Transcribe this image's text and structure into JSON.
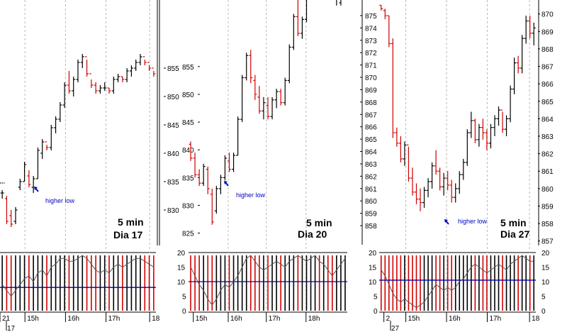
{
  "colors": {
    "up": "#000000",
    "down": "#d00000",
    "osc": "#555555",
    "level": "#0000a0",
    "annotation": "#0000c0"
  },
  "chart_data": [
    {
      "type": "ohlc",
      "label": "5 min",
      "day": "Dia 17",
      "annotation": "higher low",
      "price_ticks": [
        "830",
        "835",
        "840",
        "845",
        "850",
        "855"
      ],
      "price_range": [
        823,
        867
      ],
      "osc_ticks": [],
      "osc_range": [
        0,
        20
      ],
      "osc_level": 8,
      "time_labels": [
        "21",
        "15h",
        "16h",
        "17h",
        "18"
      ],
      "time_positions": [
        0,
        0.16,
        0.42,
        0.68,
        0.96
      ],
      "extra_label": "17",
      "bars": [
        [
          833,
          833.5,
          832,
          833
        ],
        [
          832,
          832.5,
          827.5,
          828
        ],
        [
          829,
          830,
          827,
          827.5
        ],
        [
          828,
          830.5,
          827.5,
          830
        ],
        [
          834,
          835.5,
          833.5,
          835
        ],
        [
          835,
          838.5,
          835,
          838
        ],
        [
          836,
          837,
          834,
          834.5
        ],
        [
          834,
          836,
          833,
          835.5
        ],
        [
          835.5,
          841,
          835.5,
          840.5
        ],
        [
          840,
          842.5,
          839,
          842
        ],
        [
          842,
          841.5,
          840.5,
          841
        ],
        [
          841,
          845,
          840.5,
          844.5
        ],
        [
          844.5,
          846.5,
          843.5,
          846
        ],
        [
          846,
          849,
          845.5,
          848.5
        ],
        [
          848.5,
          852.5,
          848,
          852
        ],
        [
          852,
          854.5,
          850.5,
          851
        ],
        [
          851,
          853.5,
          850,
          853
        ],
        [
          853,
          856.5,
          852.5,
          856
        ],
        [
          856,
          857.5,
          855,
          857
        ],
        [
          857,
          856.5,
          853.5,
          854
        ],
        [
          854,
          853,
          851.5,
          852
        ],
        [
          852,
          852.5,
          850.5,
          851
        ],
        [
          851,
          852,
          850.5,
          851.5
        ],
        [
          851.5,
          852.5,
          851,
          851.5
        ],
        [
          851.5,
          851.5,
          850.5,
          851
        ],
        [
          851,
          853.5,
          850.5,
          853
        ],
        [
          853,
          854,
          852.5,
          853.5
        ],
        [
          853.5,
          853.5,
          852.5,
          853
        ],
        [
          853,
          855,
          852.5,
          854.5
        ],
        [
          854.5,
          855.5,
          853.5,
          855
        ],
        [
          855,
          856.5,
          854.5,
          856
        ],
        [
          856,
          857.5,
          855.5,
          857
        ],
        [
          857,
          856.5,
          855.5,
          856
        ],
        [
          856,
          855.5,
          854.5,
          855
        ],
        [
          855,
          854.5,
          853.5,
          854
        ]
      ],
      "oscillator": [
        9,
        7,
        5,
        7,
        9,
        11,
        12,
        10,
        13,
        14,
        12,
        15,
        16,
        18,
        18,
        17,
        17,
        18,
        19,
        18,
        16,
        14,
        13,
        14,
        13,
        15,
        16,
        15,
        16,
        17,
        18,
        18,
        17,
        16,
        15
      ]
    },
    {
      "type": "ohlc",
      "label": "5 min",
      "day": "Dia 20",
      "annotation": "higher low",
      "price_ticks": [
        "825",
        "830",
        "835",
        "840",
        "845",
        "850",
        "855"
      ],
      "price_range": [
        822,
        867
      ],
      "osc_ticks": [
        "0",
        "5",
        "10",
        "15",
        "20"
      ],
      "osc_range": [
        0,
        20
      ],
      "osc_level": 10,
      "time_labels": [
        "15h",
        "16h",
        "17h",
        "18h"
      ],
      "time_positions": [
        0.03,
        0.25,
        0.49,
        0.74
      ],
      "extra_label": "",
      "bars": [
        [
          841,
          841.5,
          838,
          838.5
        ],
        [
          838.5,
          839.5,
          835,
          835.5
        ],
        [
          835.5,
          836.5,
          833.5,
          834
        ],
        [
          834,
          837.5,
          833.5,
          837
        ],
        [
          836.5,
          837,
          832,
          833
        ],
        [
          832,
          833,
          826.5,
          827
        ],
        [
          829,
          833.5,
          828.5,
          833
        ],
        [
          833,
          835.5,
          832,
          835
        ],
        [
          835,
          839,
          834.5,
          838.5
        ],
        [
          838,
          839.5,
          836,
          836.5
        ],
        [
          836.5,
          839.5,
          836,
          839
        ],
        [
          839,
          846,
          839,
          845.5
        ],
        [
          845.5,
          853.5,
          845,
          853
        ],
        [
          853,
          857.5,
          852.5,
          857
        ],
        [
          857,
          858,
          852,
          853
        ],
        [
          852.5,
          853.5,
          849,
          850
        ],
        [
          849.5,
          851.5,
          846.5,
          847
        ],
        [
          847,
          849.5,
          845.5,
          848.5
        ],
        [
          848,
          849.5,
          845.5,
          846
        ],
        [
          846,
          849.5,
          845.5,
          849
        ],
        [
          849,
          851,
          847.5,
          850.5
        ],
        [
          850.5,
          851,
          848,
          848.5
        ],
        [
          848.5,
          853,
          848,
          852.5
        ],
        [
          852.5,
          859,
          852,
          858.5
        ],
        [
          858.5,
          864.5,
          858,
          864
        ],
        [
          864,
          867,
          860.5,
          861
        ],
        [
          861,
          864,
          860,
          863.5
        ],
        [
          863.5,
          868,
          863,
          867.5
        ],
        [
          867.5,
          871.5,
          867,
          871
        ],
        [
          871,
          875.5,
          870,
          874.5
        ],
        [
          874.5,
          875,
          868,
          868.5
        ],
        [
          868.5,
          873,
          868,
          872.5
        ],
        [
          872.5,
          873,
          869.5,
          870
        ],
        [
          870,
          871,
          867,
          867.5
        ],
        [
          867.5,
          869,
          866,
          868.5
        ],
        [
          866.5,
          870,
          866,
          869.5
        ],
        [
          869.5,
          875.5,
          869,
          875
        ]
      ],
      "oscillator": [
        15,
        12,
        9,
        7,
        4,
        2,
        4,
        7,
        9,
        8,
        10,
        12,
        15,
        18,
        19,
        17,
        15,
        14,
        15,
        16,
        17,
        16,
        15,
        17,
        18,
        19,
        18,
        17,
        18,
        19,
        17,
        16,
        14,
        12,
        14,
        16,
        18
      ]
    },
    {
      "type": "ohlc",
      "label": "5 min",
      "day": "Dia 27",
      "annotation": "higher low",
      "price_ticks": [
        "857",
        "858",
        "859",
        "860",
        "861",
        "862",
        "863",
        "864",
        "865",
        "866",
        "867",
        "868",
        "869",
        "870"
      ],
      "price_range": [
        856.5,
        870.8
      ],
      "left_ticks": [
        "858",
        "859",
        "860",
        "861",
        "862",
        "863",
        "864",
        "865",
        "866",
        "867",
        "868",
        "869",
        "870",
        "871",
        "872",
        "873",
        "874",
        "875"
      ],
      "osc_ticks": [
        "0",
        "5",
        "10",
        "15",
        "20"
      ],
      "osc_range": [
        0,
        20
      ],
      "osc_level": 10.5,
      "time_labels": [
        "2",
        "15h",
        "16h",
        "17h",
        "18"
      ],
      "time_positions": [
        0.03,
        0.17,
        0.43,
        0.69,
        0.96
      ],
      "extra_label": "27",
      "bars": [
        [
          870.5,
          870.5,
          870.2,
          870.3
        ],
        [
          870.2,
          870.3,
          869.7,
          869.9
        ],
        [
          869.9,
          869.9,
          868.1,
          868.3
        ],
        [
          868.3,
          868.6,
          862.9,
          863.2
        ],
        [
          863.2,
          863.5,
          862.4,
          862.6
        ],
        [
          862.6,
          863,
          861.5,
          861.7
        ],
        [
          861.7,
          862.7,
          861.3,
          862.5
        ],
        [
          862.5,
          862.4,
          860.4,
          860.6
        ],
        [
          860.6,
          861.2,
          859.6,
          859.8
        ],
        [
          859.8,
          860.3,
          859.1,
          859.4
        ],
        [
          859.4,
          860,
          858.7,
          859.2
        ],
        [
          859.2,
          860.1,
          858.9,
          859.9
        ],
        [
          859.9,
          860.6,
          859.5,
          860.4
        ],
        [
          860.4,
          861.5,
          860,
          861.3
        ],
        [
          861.3,
          862.2,
          860.8,
          861
        ],
        [
          861,
          861.2,
          859.9,
          860.1
        ],
        [
          860.1,
          860.9,
          859.6,
          860.6
        ],
        [
          860.6,
          861,
          859.9,
          860.2
        ],
        [
          860.2,
          860.5,
          859.2,
          859.5
        ],
        [
          859.5,
          860.3,
          859.2,
          860
        ],
        [
          860,
          861,
          859.7,
          860.8
        ],
        [
          860.8,
          861.7,
          860.5,
          861.5
        ],
        [
          861.5,
          863.4,
          861.3,
          863.2
        ],
        [
          863.2,
          864.4,
          862.9,
          863.9
        ],
        [
          863.9,
          864,
          862.6,
          862.8
        ],
        [
          862.8,
          863.7,
          862.4,
          863.5
        ],
        [
          863.5,
          864,
          862.8,
          863.2
        ],
        [
          863.2,
          863.4,
          862.2,
          862.6
        ],
        [
          862.6,
          863.7,
          862.3,
          863.5
        ],
        [
          863.5,
          864.2,
          863,
          864
        ],
        [
          864,
          864.7,
          863.6,
          864.5
        ],
        [
          864.5,
          864.4,
          863.2,
          863.4
        ],
        [
          863.4,
          864.2,
          863,
          864
        ],
        [
          864,
          865.9,
          863.8,
          865.7
        ],
        [
          865.7,
          867.5,
          865.4,
          867.2
        ],
        [
          867.2,
          867.6,
          866.6,
          866.9
        ],
        [
          866.9,
          868.8,
          866.6,
          868.6
        ],
        [
          868.6,
          869.9,
          868.3,
          869.6
        ],
        [
          869.6,
          869.9,
          868.6,
          868.9
        ],
        [
          868.9,
          869.5,
          868.2,
          869.2
        ]
      ],
      "oscillator": [
        14,
        12,
        9,
        6,
        4,
        3,
        4,
        3,
        2,
        1,
        2,
        3,
        5,
        7,
        9,
        8,
        7,
        8,
        7,
        8,
        10,
        11,
        13,
        15,
        16,
        15,
        14,
        13,
        14,
        15,
        16,
        15,
        14,
        16,
        17,
        18,
        19,
        18,
        17,
        17
      ]
    }
  ]
}
